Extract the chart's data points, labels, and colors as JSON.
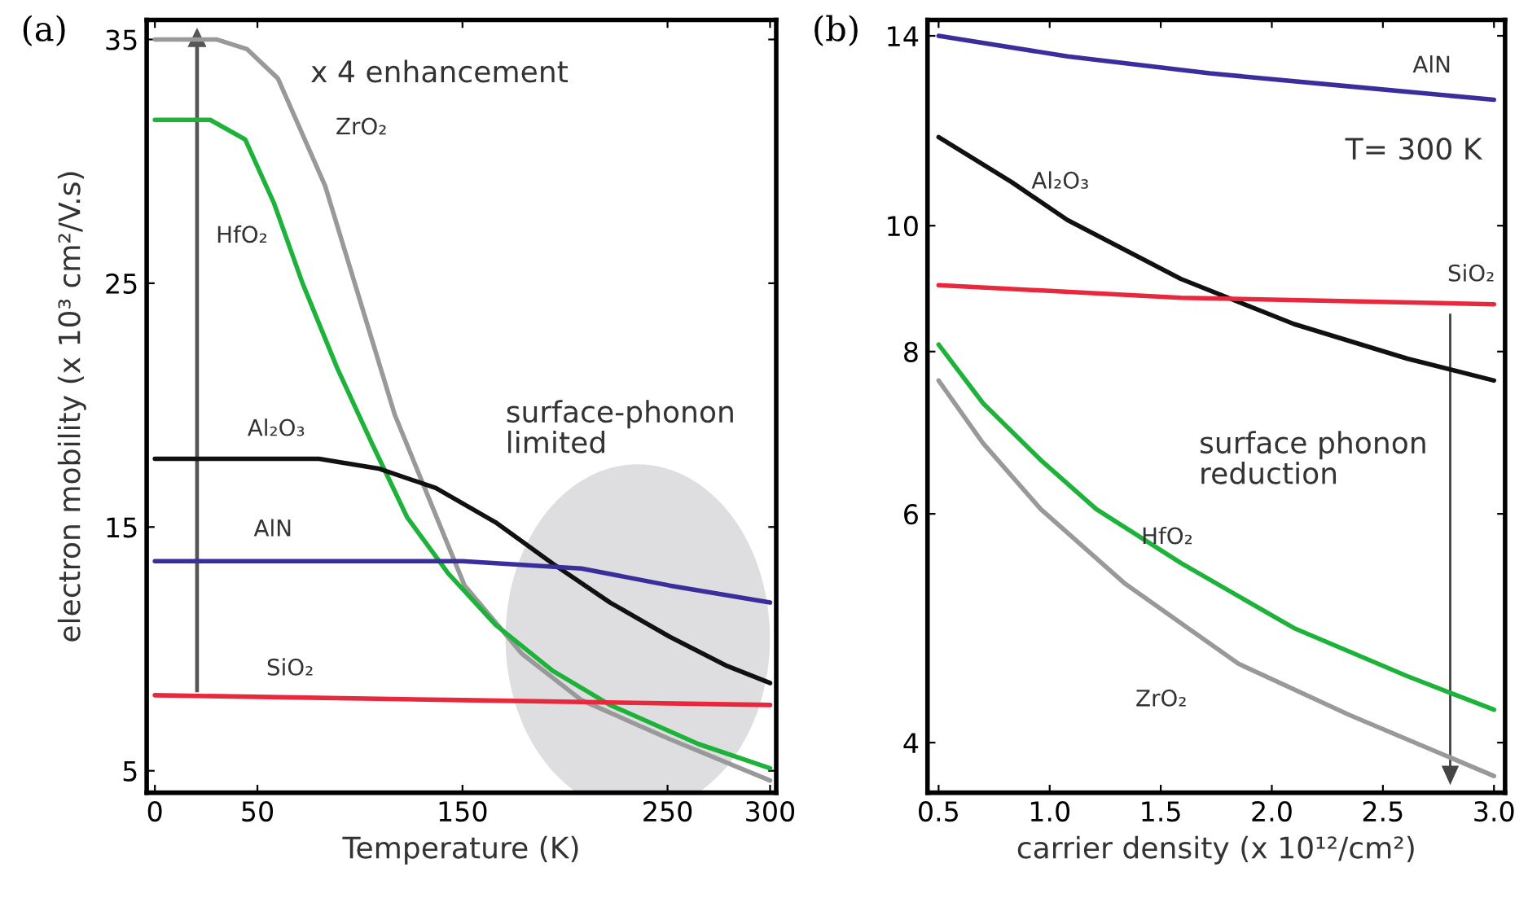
{
  "chart_data": [
    {
      "type": "line",
      "title": "(a)",
      "xlabel": "Temperature (K)",
      "ylabel": "electron mobility (x 10³ cm²/V.s)",
      "xlim": [
        -4,
        303
      ],
      "xticks": [
        0,
        50,
        150,
        250,
        300
      ],
      "ylim": [
        4.1,
        35.8
      ],
      "yticks": [
        5,
        15,
        25,
        35
      ],
      "annotations": [
        "x 4 enhancement",
        "surface-phonon limited"
      ],
      "series": [
        {
          "name": "ZrO₂",
          "color": "#999999",
          "x": [
            0,
            30,
            45,
            60,
            83,
            100,
            117,
            134,
            151,
            179,
            208,
            251,
            300
          ],
          "values": [
            35,
            35,
            34.6,
            33.4,
            29,
            24.3,
            19.6,
            16.1,
            12.6,
            9.8,
            7.9,
            6.3,
            4.6
          ]
        },
        {
          "name": "HfO₂",
          "color": "#1db33a",
          "x": [
            0,
            27,
            44,
            58,
            72,
            89,
            106,
            123,
            143,
            166,
            194,
            222,
            265,
            300
          ],
          "values": [
            31.7,
            31.7,
            30.9,
            28.3,
            25,
            21.5,
            18.4,
            15.4,
            13.1,
            11,
            9.1,
            7.7,
            6.1,
            5.1
          ]
        },
        {
          "name": "Al₂O₃",
          "color": "#111111",
          "x": [
            0,
            80,
            109,
            137,
            166,
            194,
            222,
            251,
            279,
            300
          ],
          "values": [
            17.8,
            17.8,
            17.4,
            16.6,
            15.2,
            13.5,
            11.9,
            10.5,
            9.3,
            8.6
          ]
        },
        {
          "name": "AlN",
          "color": "#3a2d9c",
          "x": [
            0,
            150,
            208,
            251,
            300
          ],
          "values": [
            13.6,
            13.6,
            13.3,
            12.6,
            11.9
          ]
        },
        {
          "name": "SiO₂",
          "color": "#e8283c",
          "x": [
            0,
            150,
            300
          ],
          "values": [
            8.1,
            7.9,
            7.7
          ]
        }
      ]
    },
    {
      "type": "line",
      "title": "(b)",
      "xlabel": "carrier density (x 10¹²/cm²)",
      "log": "y",
      "xlim": [
        0.45,
        3.05
      ],
      "xticks": [
        {
          "value": 0.5,
          "label": "0.5"
        },
        {
          "value": 1.0,
          "label": "1.0"
        },
        {
          "value": 1.5,
          "label": "1.5"
        },
        {
          "value": 2.0,
          "label": "2.0"
        },
        {
          "value": 2.5,
          "label": "2.5"
        },
        {
          "value": 3.0,
          "label": "3.0"
        }
      ],
      "ylim": [
        3.66,
        14.4
      ],
      "yticks": [
        4,
        6,
        8,
        10,
        14
      ],
      "annotations": [
        "T= 300 K",
        "surface phonon reduction"
      ],
      "series": [
        {
          "name": "AlN",
          "color": "#3a2d9c",
          "x": [
            0.5,
            1.08,
            1.72,
            2.35,
            3.0
          ],
          "values": [
            14.0,
            13.5,
            13.1,
            12.8,
            12.5
          ]
        },
        {
          "name": "Al₂O₃",
          "color": "#111111",
          "x": [
            0.5,
            0.83,
            1.08,
            1.59,
            2.1,
            2.61,
            3.0
          ],
          "values": [
            11.7,
            10.8,
            10.1,
            9.1,
            8.4,
            7.9,
            7.6
          ]
        },
        {
          "name": "SiO₂",
          "color": "#e8283c",
          "x": [
            0.5,
            1.59,
            3.0
          ],
          "values": [
            9.0,
            8.8,
            8.7
          ]
        },
        {
          "name": "HfO₂",
          "color": "#1db33a",
          "x": [
            0.5,
            0.7,
            0.96,
            1.21,
            1.59,
            2.1,
            2.61,
            3.0
          ],
          "values": [
            8.1,
            7.3,
            6.6,
            6.05,
            5.5,
            4.9,
            4.5,
            4.24
          ]
        },
        {
          "name": "ZrO₂",
          "color": "#999999",
          "x": [
            0.5,
            0.7,
            0.96,
            1.34,
            1.85,
            2.35,
            3.0
          ],
          "values": [
            7.6,
            6.8,
            6.05,
            5.3,
            4.6,
            4.2,
            3.77
          ]
        }
      ]
    }
  ]
}
